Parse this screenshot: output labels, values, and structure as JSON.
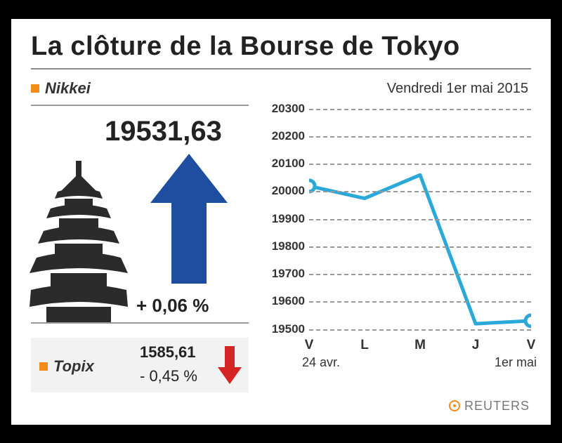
{
  "title": "La clôture de la Bourse de Tokyo",
  "date_label": "Vendredi 1er mai 2015",
  "nikkei": {
    "label": "Nikkei",
    "value": "19531,63",
    "change": "+ 0,06 %",
    "arrow_color": "#1f4ea0"
  },
  "topix": {
    "label": "Topix",
    "value": "1585,61",
    "change": "- 0,45  %",
    "arrow_color": "#d62424",
    "panel_bg": "#f2f2f2"
  },
  "legend_marker_color": "#f28c1b",
  "chart": {
    "type": "line",
    "line_color": "#2aa8d8",
    "line_width": 5,
    "marker_fill": "#ffffff",
    "marker_stroke": "#2aa8d8",
    "marker_radius": 8,
    "marker_stroke_width": 5,
    "background": "#ffffff",
    "grid_color": "#999999",
    "grid_dash": "5,5",
    "ylim": [
      19500,
      20300
    ],
    "ytick_step": 100,
    "yticks": [
      "20300",
      "20200",
      "20100",
      "20000",
      "19900",
      "19800",
      "19700",
      "19600",
      "19500"
    ],
    "x_labels": [
      "V",
      "L",
      "M",
      "J",
      "V"
    ],
    "x_start": "24 avr.",
    "x_end": "1er mai",
    "values": [
      20020,
      19975,
      20060,
      19520,
      19531
    ],
    "marker_indices": [
      0,
      4
    ],
    "label_fontsize": 17,
    "xlabel_fontsize": 19
  },
  "pagoda_color": "#2b2b2b",
  "source": "REUTERS"
}
